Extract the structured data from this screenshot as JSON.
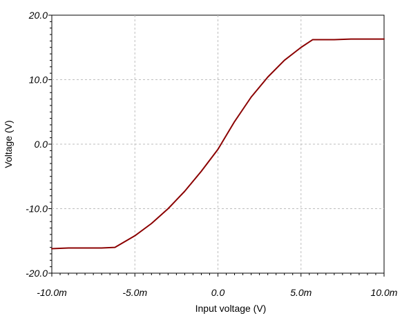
{
  "chart_data": {
    "type": "line",
    "title": "",
    "xlabel": "Input voltage (V)",
    "ylabel": "Voltage (V)",
    "xlim": [
      -0.01,
      0.01
    ],
    "ylim": [
      -20,
      20
    ],
    "x_ticks": [
      {
        "value": -0.01,
        "label": "-10.0m"
      },
      {
        "value": -0.005,
        "label": "-5.0m"
      },
      {
        "value": 0,
        "label": "0.0"
      },
      {
        "value": 0.005,
        "label": "5.0m"
      },
      {
        "value": 0.01,
        "label": "10.0m"
      }
    ],
    "y_ticks": [
      {
        "value": 20,
        "label": "20.0"
      },
      {
        "value": 10,
        "label": "10.0"
      },
      {
        "value": 0,
        "label": "0.0"
      },
      {
        "value": -10,
        "label": "-10.0"
      },
      {
        "value": -20,
        "label": "-20.0"
      }
    ],
    "grid": true,
    "legend": "none",
    "series": [
      {
        "color": "#8b0000",
        "x": [
          -0.01,
          -0.009,
          -0.008,
          -0.007,
          -0.0062,
          -0.005,
          -0.004,
          -0.003,
          -0.002,
          -0.001,
          0,
          0.001,
          0.002,
          0.003,
          0.004,
          0.005,
          0.0057,
          0.007,
          0.008,
          0.009,
          0.01
        ],
        "y": [
          -16.2,
          -16.1,
          -16.1,
          -16.1,
          -16.0,
          -14.2,
          -12.3,
          -10.0,
          -7.3,
          -4.2,
          -0.8,
          3.5,
          7.3,
          10.4,
          13.0,
          15.0,
          16.2,
          16.2,
          16.3,
          16.3,
          16.3
        ]
      }
    ]
  }
}
